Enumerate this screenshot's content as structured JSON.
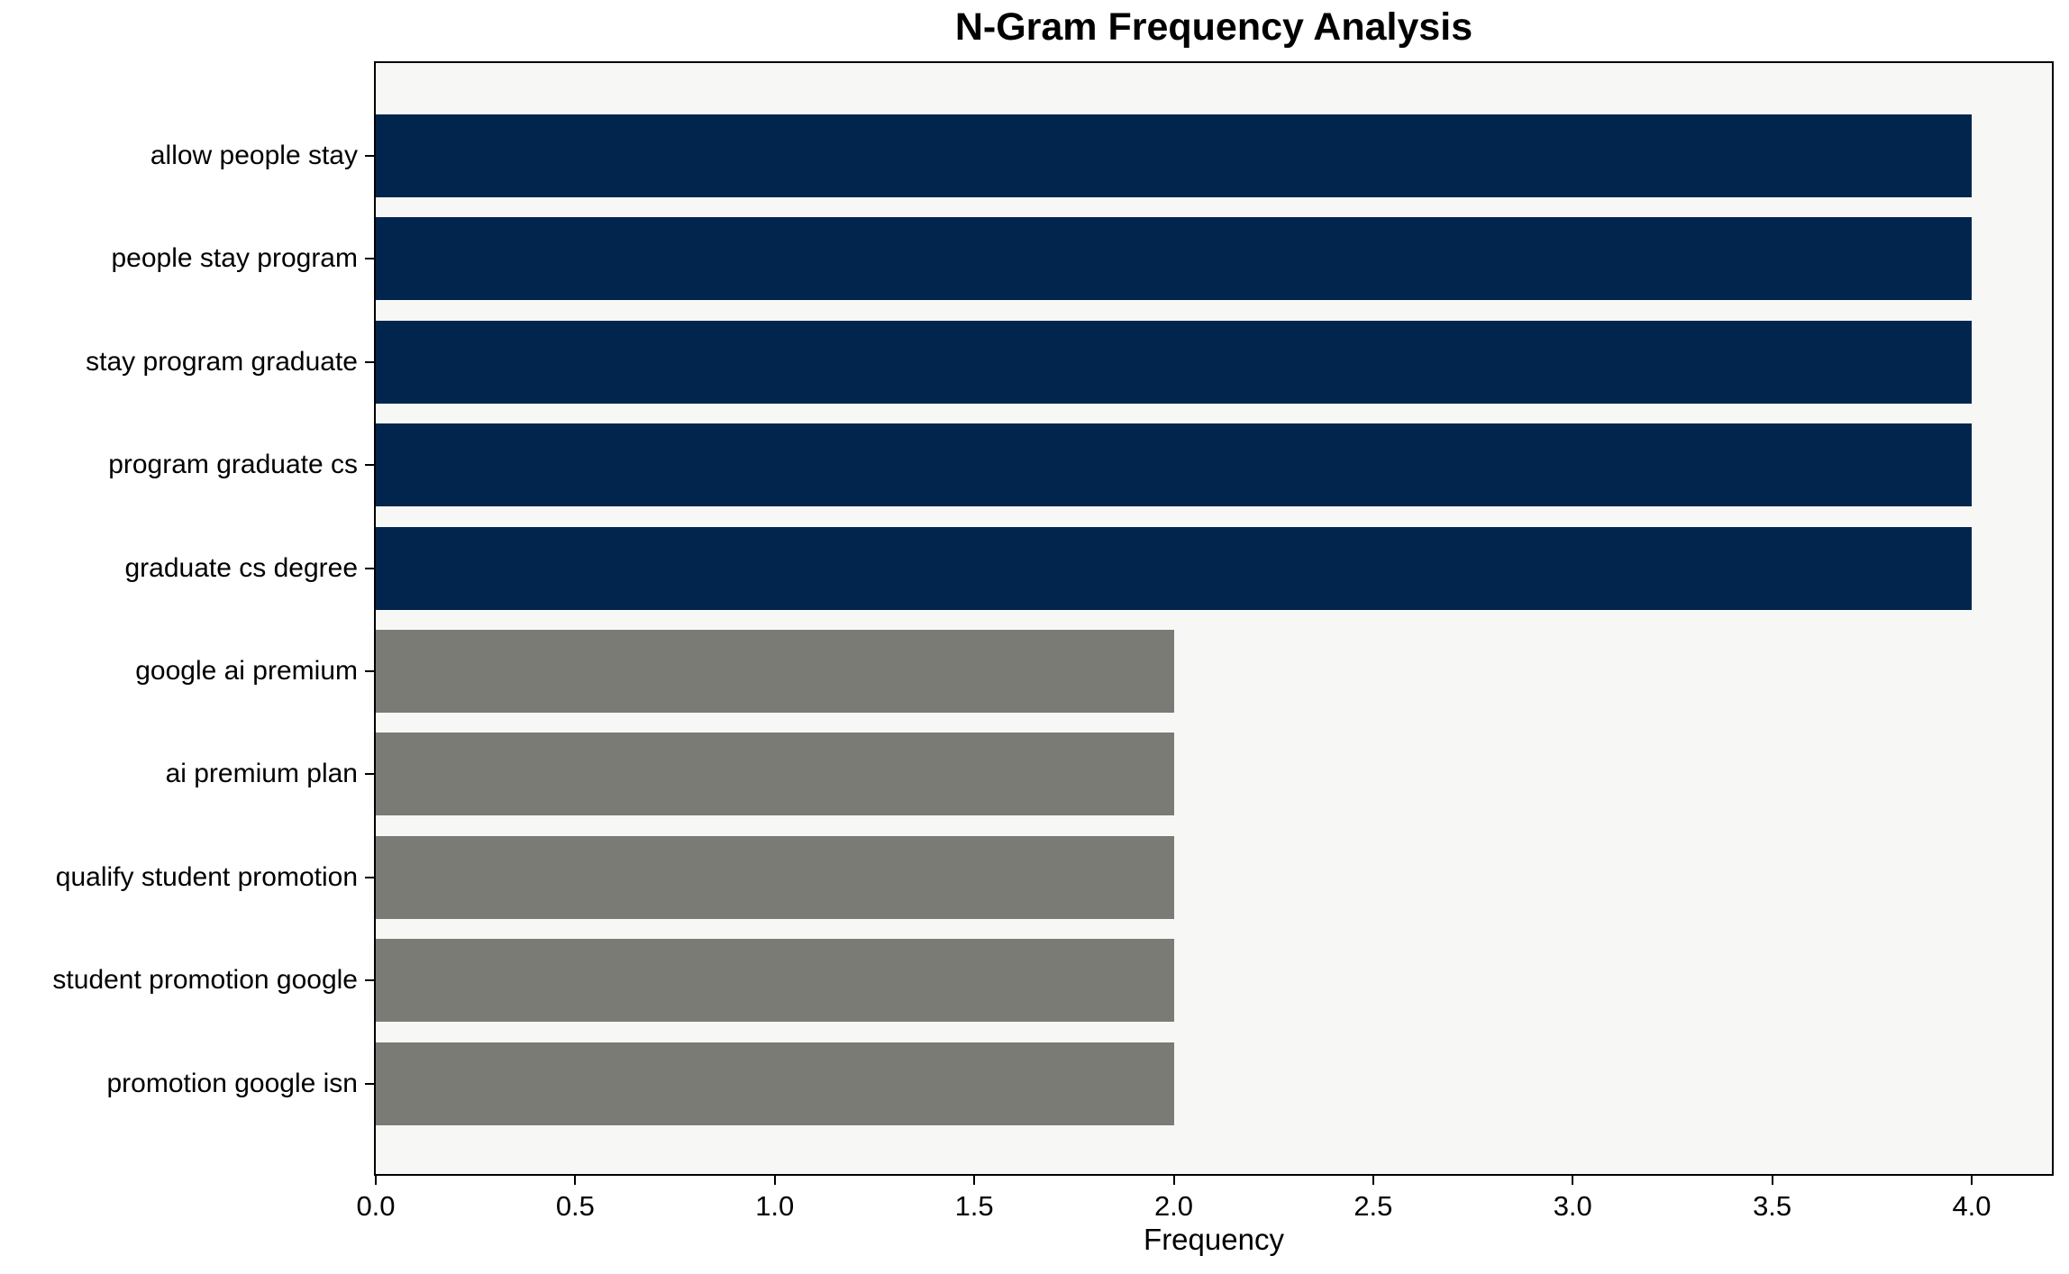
{
  "chart_data": {
    "type": "bar",
    "orientation": "horizontal",
    "title": "N-Gram Frequency Analysis",
    "xlabel": "Frequency",
    "ylabel": "",
    "categories": [
      "allow people stay",
      "people stay program",
      "stay program graduate",
      "program graduate cs",
      "graduate cs degree",
      "google ai premium",
      "ai premium plan",
      "qualify student promotion",
      "student promotion google",
      "promotion google isn"
    ],
    "values": [
      4,
      4,
      4,
      4,
      4,
      2,
      2,
      2,
      2,
      2
    ],
    "bar_colors": [
      "#02254e",
      "#02254e",
      "#02254e",
      "#02254e",
      "#02254e",
      "#7b7b76",
      "#7b7b76",
      "#7b7b76",
      "#7b7b76",
      "#7b7b76"
    ],
    "palette": {
      "navy": "#02254e",
      "gray": "#7b7b76",
      "plot_background": "#f7f7f6",
      "figure_background": "#ffffff",
      "axis_color": "#000000"
    },
    "xticks": [
      "0.0",
      "0.5",
      "1.0",
      "1.5",
      "2.0",
      "2.5",
      "3.0",
      "3.5",
      "4.0"
    ],
    "xlim": [
      0,
      4.2
    ],
    "grid": false,
    "legend": null
  }
}
